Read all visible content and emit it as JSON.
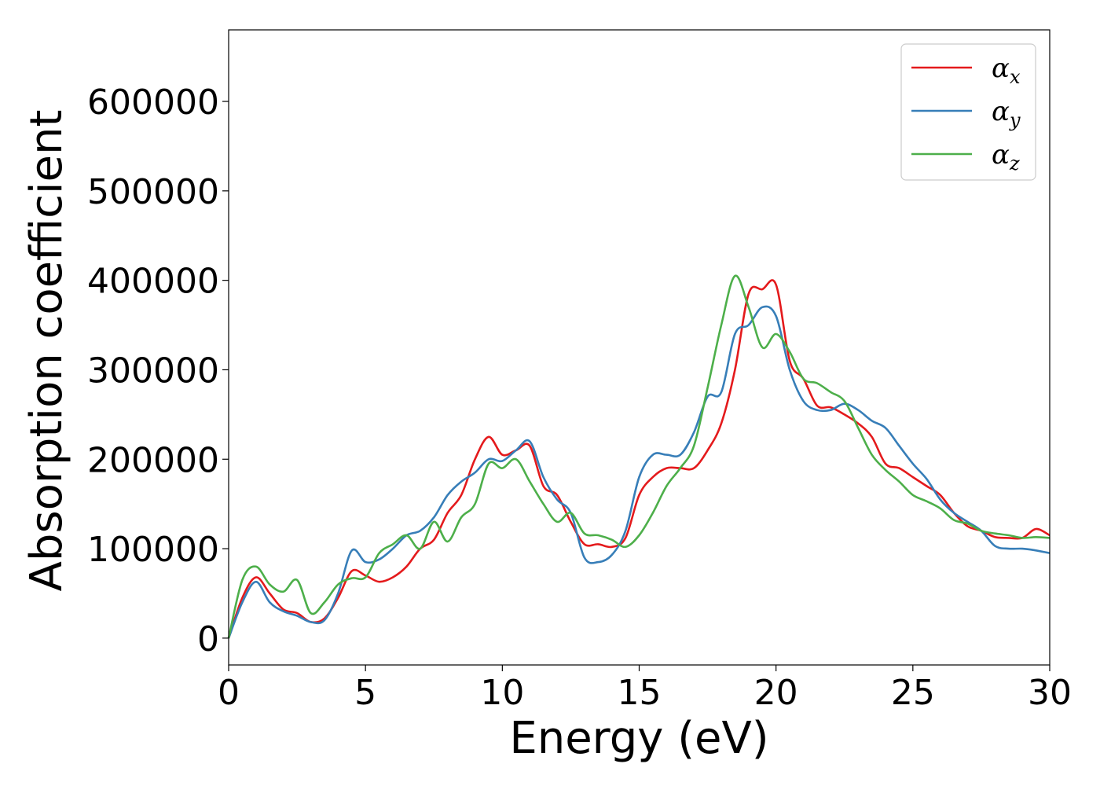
{
  "chart_data": {
    "type": "line",
    "title": "",
    "xlabel": "Energy (eV)",
    "ylabel": "Absorption coefficient",
    "xlim": [
      0,
      30
    ],
    "ylim": [
      -30000,
      680000
    ],
    "xticks": [
      0,
      5,
      10,
      15,
      20,
      25,
      30
    ],
    "yticks": [
      0,
      100000,
      200000,
      300000,
      400000,
      500000,
      600000
    ],
    "grid": false,
    "legend_position": "top-right",
    "series": [
      {
        "name": "αx",
        "base": "α",
        "sub": "x",
        "color": "#e41a1c",
        "x": [
          0,
          0.5,
          1.0,
          1.5,
          2.0,
          2.5,
          3.0,
          3.5,
          4.0,
          4.5,
          5.0,
          5.5,
          6.0,
          6.5,
          7.0,
          7.5,
          8.0,
          8.5,
          9.0,
          9.5,
          10.0,
          10.5,
          11.0,
          11.5,
          12.0,
          12.5,
          13.0,
          13.5,
          14.0,
          14.5,
          15.0,
          15.5,
          16.0,
          16.5,
          17.0,
          17.5,
          18.0,
          18.5,
          19.0,
          19.5,
          20.0,
          20.5,
          21.0,
          21.5,
          22.0,
          22.5,
          23.0,
          23.5,
          24.0,
          24.5,
          25.0,
          25.5,
          26.0,
          26.5,
          27.0,
          27.5,
          28.0,
          28.5,
          29.0,
          29.5,
          30.0
        ],
        "values": [
          0,
          45000,
          68000,
          50000,
          32000,
          28000,
          18000,
          22000,
          45000,
          75000,
          70000,
          63000,
          68000,
          80000,
          100000,
          110000,
          140000,
          160000,
          200000,
          225000,
          205000,
          210000,
          215000,
          170000,
          160000,
          130000,
          105000,
          105000,
          102000,
          112000,
          160000,
          180000,
          190000,
          190000,
          190000,
          210000,
          240000,
          300000,
          385000,
          390000,
          395000,
          310000,
          290000,
          260000,
          258000,
          250000,
          240000,
          225000,
          195000,
          190000,
          180000,
          170000,
          160000,
          140000,
          125000,
          120000,
          113000,
          112000,
          112000,
          122000,
          115000
        ]
      },
      {
        "name": "αy",
        "base": "α",
        "sub": "y",
        "color": "#377eb8",
        "x": [
          0,
          0.5,
          1.0,
          1.5,
          2.0,
          2.5,
          3.0,
          3.5,
          4.0,
          4.5,
          5.0,
          5.5,
          6.0,
          6.5,
          7.0,
          7.5,
          8.0,
          8.5,
          9.0,
          9.5,
          10.0,
          10.5,
          11.0,
          11.5,
          12.0,
          12.5,
          13.0,
          13.5,
          14.0,
          14.5,
          15.0,
          15.5,
          16.0,
          16.5,
          17.0,
          17.5,
          18.0,
          18.5,
          19.0,
          19.5,
          20.0,
          20.5,
          21.0,
          21.5,
          22.0,
          22.5,
          23.0,
          23.5,
          24.0,
          24.5,
          25.0,
          25.5,
          26.0,
          26.5,
          27.0,
          27.5,
          28.0,
          28.5,
          29.0,
          29.5,
          30.0
        ],
        "values": [
          0,
          40000,
          63000,
          40000,
          30000,
          25000,
          18000,
          20000,
          50000,
          98000,
          85000,
          88000,
          100000,
          115000,
          120000,
          135000,
          160000,
          175000,
          185000,
          200000,
          198000,
          210000,
          220000,
          180000,
          155000,
          140000,
          90000,
          85000,
          93000,
          120000,
          180000,
          205000,
          205000,
          205000,
          230000,
          270000,
          275000,
          340000,
          350000,
          370000,
          360000,
          300000,
          265000,
          255000,
          255000,
          262000,
          255000,
          243000,
          235000,
          215000,
          195000,
          178000,
          155000,
          140000,
          130000,
          120000,
          103000,
          100000,
          100000,
          98000,
          95000
        ]
      },
      {
        "name": "αz",
        "base": "α",
        "sub": "z",
        "color": "#4daf4a",
        "x": [
          0,
          0.5,
          1.0,
          1.5,
          2.0,
          2.5,
          3.0,
          3.5,
          4.0,
          4.5,
          5.0,
          5.5,
          6.0,
          6.5,
          7.0,
          7.5,
          8.0,
          8.5,
          9.0,
          9.5,
          10.0,
          10.5,
          11.0,
          11.5,
          12.0,
          12.5,
          13.0,
          13.5,
          14.0,
          14.5,
          15.0,
          15.5,
          16.0,
          16.5,
          17.0,
          17.5,
          18.0,
          18.5,
          19.0,
          19.5,
          20.0,
          20.5,
          21.0,
          21.5,
          22.0,
          22.5,
          23.0,
          23.5,
          24.0,
          24.5,
          25.0,
          25.5,
          26.0,
          26.5,
          27.0,
          27.5,
          28.0,
          28.5,
          29.0,
          29.5,
          30.0
        ],
        "values": [
          0,
          65000,
          80000,
          60000,
          52000,
          65000,
          28000,
          40000,
          60000,
          67000,
          68000,
          95000,
          105000,
          115000,
          100000,
          130000,
          108000,
          135000,
          150000,
          195000,
          190000,
          200000,
          175000,
          150000,
          130000,
          140000,
          117000,
          115000,
          110000,
          102000,
          115000,
          140000,
          170000,
          190000,
          215000,
          280000,
          350000,
          405000,
          370000,
          325000,
          340000,
          320000,
          290000,
          285000,
          275000,
          265000,
          235000,
          205000,
          188000,
          175000,
          160000,
          153000,
          145000,
          132000,
          128000,
          120000,
          117000,
          115000,
          112000,
          113000,
          112000
        ]
      }
    ]
  }
}
